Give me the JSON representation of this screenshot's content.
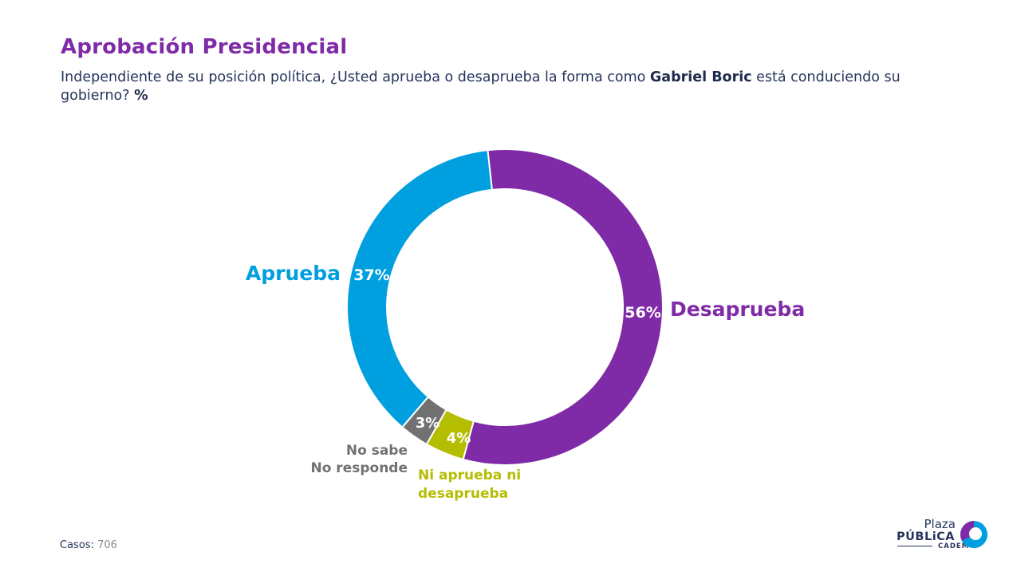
{
  "title": "Aprobación Presidencial",
  "subtitle": {
    "part1": "Independiente de su posición política, ¿Usted aprueba o desaprueba la forma como ",
    "name": "Gabriel Boric",
    "part2": " está conduciendo su gobierno? ",
    "unit": "%"
  },
  "chart_data": {
    "type": "pie",
    "variant": "donut",
    "slices": [
      {
        "label": "Desaprueba",
        "value": 56,
        "value_label": "56%",
        "color": "#7f2ba7"
      },
      {
        "label": "Ni aprueba ni desaprueba",
        "value": 4,
        "value_label": "4%",
        "color": "#b5bd00"
      },
      {
        "label": "No sabe No responde",
        "value": 3,
        "value_label": "3%",
        "color": "#717171"
      },
      {
        "label": "Aprueba",
        "value": 37,
        "value_label": "37%",
        "color": "#009fdf"
      }
    ],
    "start": "top",
    "direction": "clockwise"
  },
  "footer": {
    "cases_label": "Casos",
    "cases_value": "706"
  },
  "logo": {
    "line1": "Plaza",
    "line2": "PÚBLiCA",
    "line3": "CADEM"
  }
}
